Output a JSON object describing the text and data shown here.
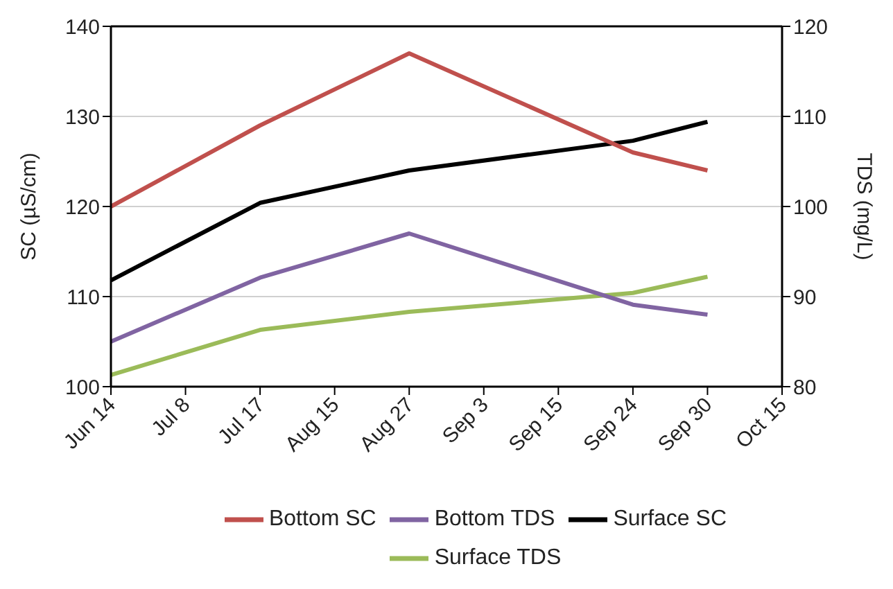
{
  "chart_data": {
    "type": "line",
    "xlabel": null,
    "ylabel": "SC (µS/cm)",
    "y2label": "TDS (mg/L)",
    "categories": [
      "Jun 14",
      "Jul 8",
      "Jul 17",
      "Aug 15",
      "Aug 27",
      "Sep 3",
      "Sep 15",
      "Sep 24",
      "Sep 30",
      "Oct 15"
    ],
    "series": [
      {
        "name": "Surface SC",
        "color": "#000000",
        "values": [
          111.8,
          null,
          120.4,
          null,
          124,
          null,
          null,
          127.3,
          129.4,
          null
        ]
      },
      {
        "name": "Bottom SC",
        "color": "#c0504d",
        "values": [
          120,
          null,
          129,
          null,
          137,
          null,
          null,
          126,
          124,
          null
        ]
      },
      {
        "name": "Surface TDS",
        "color": "#9bbb59",
        "axis": "y2",
        "values": [
          81.3,
          null,
          86.3,
          null,
          88.3,
          null,
          null,
          90.4,
          92.2,
          null
        ]
      },
      {
        "name": "Bottom TDS",
        "color": "#8064a2",
        "axis": "y2",
        "values": [
          85,
          null,
          92.1,
          null,
          97,
          null,
          null,
          89.1,
          88,
          null
        ]
      }
    ],
    "ylim": [
      100,
      140
    ],
    "yticks": [
      100,
      110,
      120,
      130,
      140
    ],
    "y2lim": [
      80,
      120
    ],
    "y2ticks": [
      80,
      90,
      100,
      110,
      120
    ],
    "grid": "y",
    "legend": "bottom",
    "marker": "none",
    "line_style": "solid"
  }
}
